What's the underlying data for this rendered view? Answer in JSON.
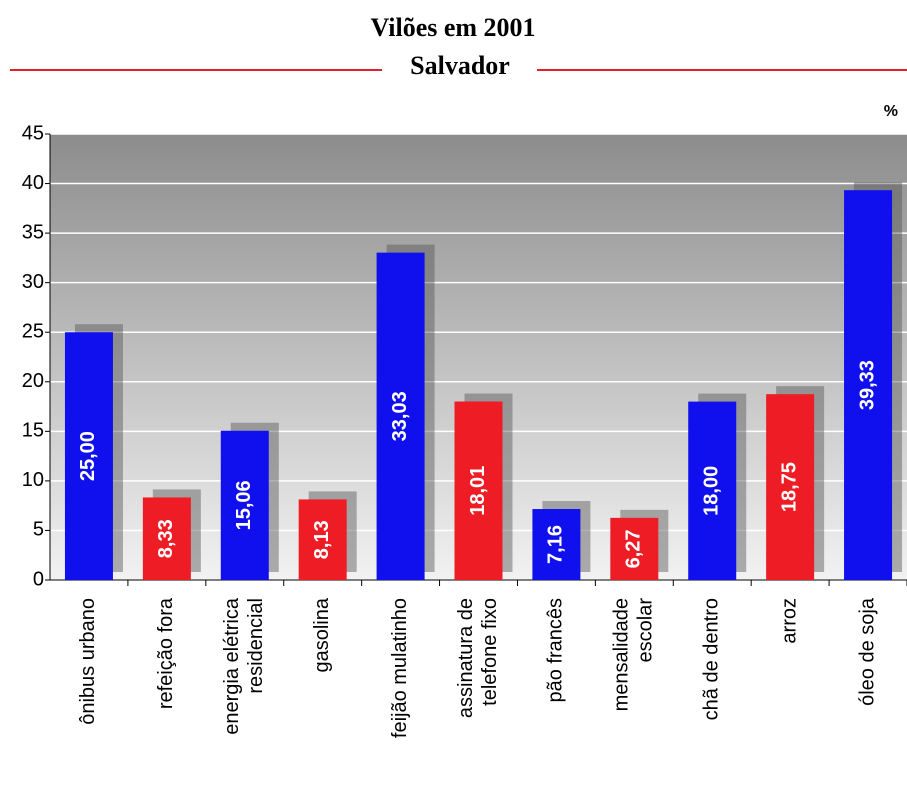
{
  "chart_data": {
    "type": "bar",
    "title": "Vilões em 2001",
    "subtitle": "Salvador",
    "unit_label": "%",
    "categories": [
      [
        "ônibus urbano"
      ],
      [
        "refeição fora"
      ],
      [
        "energia elétrica",
        "residencial"
      ],
      [
        "gasolina"
      ],
      [
        "feijão mulatinho"
      ],
      [
        "assinatura de",
        "telefone fixo"
      ],
      [
        "pão francês"
      ],
      [
        "mensalidade",
        "escolar"
      ],
      [
        "chã de dentro"
      ],
      [
        "arroz"
      ],
      [
        "óleo de soja"
      ]
    ],
    "values": [
      25.0,
      8.33,
      15.06,
      8.13,
      33.03,
      18.01,
      7.16,
      6.27,
      18.0,
      18.75,
      39.33
    ],
    "value_labels": [
      "25,00",
      "8,33",
      "15,06",
      "8,13",
      "33,03",
      "18,01",
      "7,16",
      "6,27",
      "18,00",
      "18,75",
      "39,33"
    ],
    "colors": [
      "#1010ee",
      "#ee1c24",
      "#1010ee",
      "#ee1c24",
      "#1010ee",
      "#ee1c24",
      "#1010ee",
      "#ee1c24",
      "#1010ee",
      "#ee1c24",
      "#1010ee"
    ],
    "ylim": [
      0,
      45
    ],
    "yticks": [
      0,
      5,
      10,
      15,
      20,
      25,
      30,
      35,
      40,
      45
    ],
    "grid": true
  }
}
